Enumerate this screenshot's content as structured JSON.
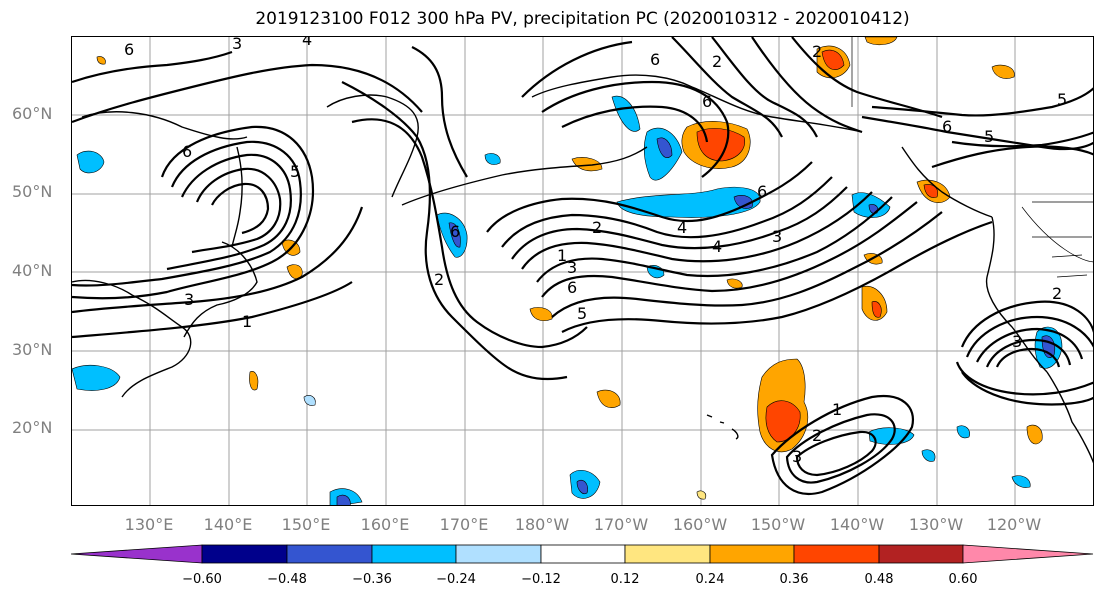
{
  "title": "2019123100 F012 300 hPa PV, precipitation PC (2020010312 - 2020010412)",
  "lat_labels": [
    "60°N",
    "50°N",
    "40°N",
    "30°N",
    "20°N"
  ],
  "lon_labels": [
    "130°E",
    "140°E",
    "150°E",
    "160°E",
    "170°E",
    "180°W",
    "170°W",
    "160°W",
    "150°W",
    "140°W",
    "130°W",
    "120°W"
  ],
  "colorbar": {
    "colors": [
      "#9932cc",
      "#00008b",
      "#3455d0",
      "#00bfff",
      "#b0e0ff",
      "#ffffff",
      "#ffe680",
      "#ffa500",
      "#ff4500",
      "#b22222",
      "#ff88aa"
    ],
    "tick_labels": [
      "−0.60",
      "−0.48",
      "−0.36",
      "−0.24",
      "−0.12",
      "0.12",
      "0.24",
      "0.36",
      "0.48",
      "0.60"
    ]
  },
  "contour_labels": [
    "6",
    "3",
    "4",
    "5",
    "1",
    "2"
  ]
}
